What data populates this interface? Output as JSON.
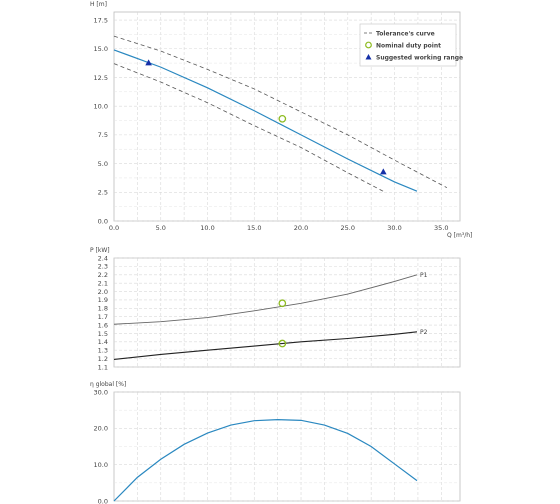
{
  "chart_data": [
    {
      "type": "line",
      "xlabel": "Q [m³/h]",
      "ylabel": "H [m]",
      "xlim": [
        0,
        37
      ],
      "ylim": [
        0,
        18.2
      ],
      "xticks": [
        "0.0",
        "5.0",
        "10.0",
        "15.0",
        "20.0",
        "25.0",
        "30.0",
        "35.0"
      ],
      "yticks": [
        "0.0",
        "2.5",
        "5.0",
        "7.5",
        "10.0",
        "12.5",
        "15.0",
        "17.5"
      ],
      "grid": true,
      "legend_position": "top-right",
      "legend": {
        "tolerance": "Tolerance's curve",
        "duty": "Nominal duty point",
        "working": "Suggested working range"
      },
      "series": [
        {
          "role": "main",
          "color": "#2a88c0",
          "x": [
            0,
            5,
            10,
            15,
            20,
            25,
            30,
            32.4
          ],
          "y": [
            14.9,
            13.4,
            11.6,
            9.6,
            7.5,
            5.4,
            3.4,
            2.6
          ]
        },
        {
          "role": "tolerance-upper",
          "color": "#555555",
          "x": [
            0,
            5,
            10,
            15,
            20,
            25,
            30,
            35.6
          ],
          "y": [
            16.1,
            14.8,
            13.2,
            11.5,
            9.5,
            7.5,
            5.3,
            2.9
          ]
        },
        {
          "role": "tolerance-lower",
          "color": "#555555",
          "x": [
            0,
            5,
            10,
            15,
            20,
            25,
            29
          ],
          "y": [
            13.7,
            12.1,
            10.3,
            8.3,
            6.4,
            4.2,
            2.5
          ]
        }
      ],
      "duty_point": {
        "x": 18.0,
        "y": 8.9
      },
      "working_range": [
        {
          "x": 3.7,
          "y": 13.8
        },
        {
          "x": 28.8,
          "y": 4.3
        }
      ]
    },
    {
      "type": "line",
      "ylabel": "P [kW]",
      "xlim": [
        0,
        37
      ],
      "ylim": [
        1.1,
        2.4
      ],
      "yticks": [
        "1.1",
        "1.2",
        "1.3",
        "1.4",
        "1.5",
        "1.6",
        "1.7",
        "1.8",
        "1.9",
        "2.0",
        "2.1",
        "2.2",
        "2.3",
        "2.4"
      ],
      "grid": true,
      "series": [
        {
          "name": "P1",
          "color": "#666666",
          "x": [
            0,
            5,
            10,
            15,
            20,
            25,
            30,
            32.4
          ],
          "y": [
            1.61,
            1.64,
            1.69,
            1.77,
            1.86,
            1.97,
            2.12,
            2.2
          ]
        },
        {
          "name": "P2",
          "color": "#222222",
          "x": [
            0,
            5,
            10,
            15,
            20,
            25,
            30,
            32.4
          ],
          "y": [
            1.19,
            1.25,
            1.3,
            1.35,
            1.4,
            1.44,
            1.49,
            1.52
          ]
        }
      ],
      "duty_points": [
        {
          "x": 18.0,
          "y": 1.86
        },
        {
          "x": 18.0,
          "y": 1.38
        }
      ]
    },
    {
      "type": "line",
      "ylabel": "η global [%]",
      "xlim": [
        0,
        37
      ],
      "ylim": [
        0,
        30
      ],
      "yticks": [
        "0.0",
        "10.0",
        "20.0",
        "30.0"
      ],
      "grid": true,
      "series": [
        {
          "color": "#2a88c0",
          "x": [
            0,
            2.5,
            5,
            7.5,
            10,
            12.5,
            15,
            17.5,
            20,
            22.5,
            25,
            27.5,
            30,
            32.4
          ],
          "y": [
            0,
            6.5,
            11.5,
            15.6,
            18.7,
            20.9,
            22.1,
            22.4,
            22.2,
            20.9,
            18.6,
            15.0,
            10.2,
            5.6
          ]
        }
      ]
    }
  ]
}
